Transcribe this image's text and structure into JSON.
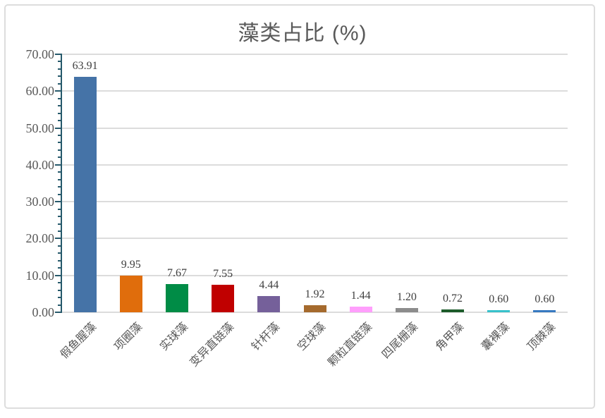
{
  "chart_data": {
    "type": "bar",
    "title": "藻类占比 (%)",
    "categories": [
      "假鱼腥藻",
      "项圈藻",
      "实球藻",
      "变异直链藻",
      "针杆藻",
      "空球藻",
      "颗粒直链藻",
      "四尾栅藻",
      "角甲藻",
      "囊裸藻",
      "顶棘藻"
    ],
    "values": [
      63.91,
      9.95,
      7.67,
      7.55,
      4.44,
      1.92,
      1.44,
      1.2,
      0.72,
      0.6,
      0.6
    ],
    "bar_colors": [
      "#4573A7",
      "#E06D0C",
      "#008C46",
      "#C00000",
      "#75609A",
      "#A56A2D",
      "#FF9FFC",
      "#8C8C8C",
      "#1C5B2A",
      "#38C2CB",
      "#3779C1"
    ],
    "ylim": [
      0,
      70
    ],
    "y_major_step": 10,
    "y_minor_step": 2,
    "y_tick_labels": [
      "0.00",
      "10.00",
      "20.00",
      "30.00",
      "40.00",
      "50.00",
      "60.00",
      "70.00"
    ],
    "grid": true,
    "legend": "none",
    "xlabel": "",
    "ylabel": "",
    "styles": {
      "axis_color": "#26596B",
      "gridline_color": "#DCDCDC",
      "title_color": "#595959",
      "tick_label_color": "#595959",
      "value_label_color": "#3F3F3F",
      "category_label_color": "#595959",
      "frame_border_color": "#DDDDDD",
      "background": "#FFFFFF"
    }
  }
}
